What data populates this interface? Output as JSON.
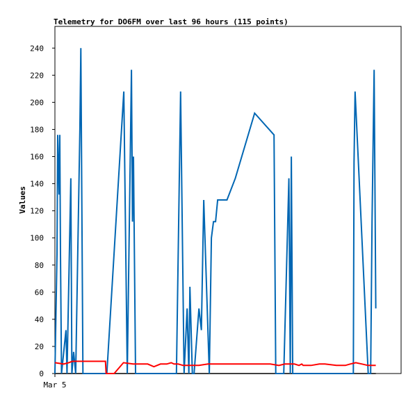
{
  "chart_data": {
    "type": "line",
    "title": "Telemetry for DO6FM over last 96 hours (115 points)",
    "ylabel": "Values",
    "xlabel": "",
    "x_tick_labels": [
      "Mar 5"
    ],
    "ylim": [
      0,
      256
    ],
    "y_ticks": [
      0,
      20,
      40,
      60,
      80,
      100,
      120,
      140,
      160,
      180,
      200,
      220,
      240
    ],
    "xlim": [
      0,
      100
    ],
    "grid": false,
    "legend": "none",
    "series": [
      {
        "color": "#0066b3",
        "x": [
          0,
          0.6,
          0.8,
          1.2,
          1.4,
          1.6,
          1.9,
          3.2,
          3.5,
          4.6,
          4.9,
          5.4,
          6.0,
          7.2,
          7.5,
          7.8,
          8.1,
          8.4,
          15.0,
          19.9,
          20.9,
          22.1,
          22.4,
          22.7,
          23.3,
          35.1,
          36.3,
          37.3,
          38.2,
          38.7,
          39.0,
          39.7,
          40.2,
          41.6,
          42.3,
          43.0,
          44.6,
          45.2,
          45.8,
          46.4,
          47.0,
          49.7,
          52.1,
          57.7,
          63.3,
          63.8,
          66.1,
          67.6,
          68.0,
          68.3,
          68.7,
          69.3,
          86.2,
          86.4,
          86.7,
          90.5,
          91.2,
          91.6,
          92.2,
          92.7
        ],
        "y": [
          0,
          88,
          176,
          132,
          176,
          88,
          0,
          32,
          0,
          144,
          0,
          16,
          0,
          180,
          240,
          120,
          0,
          0,
          0,
          208,
          0,
          224,
          112,
          160,
          0,
          0,
          208,
          0,
          48,
          0,
          64,
          0,
          0,
          48,
          32,
          128,
          0,
          100,
          112,
          112,
          128,
          128,
          144,
          192,
          176,
          0,
          0,
          144,
          0,
          160,
          0,
          0,
          0,
          156,
          208,
          0,
          0,
          112,
          224,
          48
        ]
      },
      {
        "color": "#ff0000",
        "x": [
          0,
          2.5,
          4.0,
          5.0,
          9.5,
          12.0,
          14.6,
          14.8,
          17.1,
          19.8,
          22.6,
          24.6,
          26.8,
          28.6,
          30.5,
          32.3,
          33.6,
          34.4,
          35.6,
          37.0,
          38.3,
          39.8,
          41.6,
          44.2,
          50.0,
          56.5,
          62.2,
          64.7,
          66.4,
          67.9,
          69.2,
          70.5,
          71.3,
          71.7,
          72.4,
          74.0,
          76.4,
          78.0,
          81.3,
          83.9,
          85.3,
          86.9,
          88.7,
          90.4,
          91.2,
          92.0,
          92.7
        ],
        "y": [
          8,
          7,
          8,
          9,
          9,
          9,
          9,
          0,
          0,
          8,
          7,
          7,
          7,
          5,
          7,
          7,
          8,
          7,
          7,
          6,
          6,
          6,
          6,
          7,
          7,
          7,
          7,
          6,
          7,
          7,
          7,
          6,
          7,
          6,
          6,
          6,
          7,
          7,
          6,
          6,
          7,
          8,
          7,
          6,
          6,
          6,
          6
        ]
      }
    ]
  }
}
